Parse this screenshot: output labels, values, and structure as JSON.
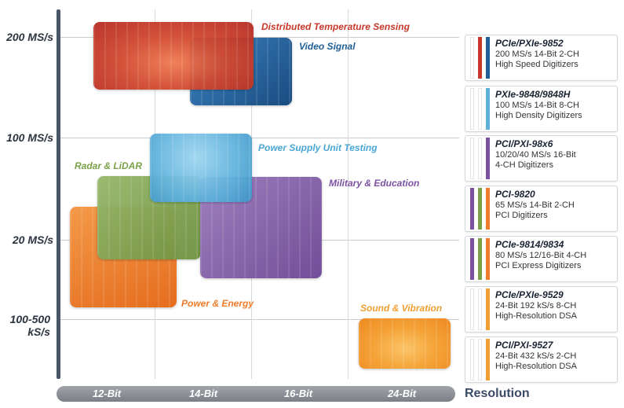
{
  "y_axis": {
    "labels": [
      "200 MS/s",
      "100 MS/s",
      "20 MS/s",
      "100-500 kS/s"
    ]
  },
  "x_axis": {
    "labels": [
      "12-Bit",
      "14-Bit",
      "16-Bit",
      "24-Bit"
    ],
    "title": "Resolution"
  },
  "applications": [
    {
      "label": "Distributed Temperature Sensing",
      "color": "#c8382a"
    },
    {
      "label": "Video Signal",
      "color": "#1f5e96"
    },
    {
      "label": "Power Supply Unit Testing",
      "color": "#5fb0d9"
    },
    {
      "label": "Radar & LiDAR",
      "color": "#7aa148"
    },
    {
      "label": "Military & Education",
      "color": "#7c52a0"
    },
    {
      "label": "Power & Energy",
      "color": "#ee7c2a"
    },
    {
      "label": "Sound & Vibration",
      "color": "#f0a032"
    }
  ],
  "products": [
    {
      "model": "PCIe/PXIe-9852",
      "line1": "200 MS/s 14-Bit  2-CH",
      "line2": "High Speed Digitizers",
      "strips": [
        "",
        "#c8382a",
        "#1f5e96"
      ]
    },
    {
      "model": "PXIe-9848/9848H",
      "line1": "100 MS/s 14-Bit  8-CH",
      "line2": "High Density Digitizers",
      "strips": [
        "",
        "",
        "#5fb0d9"
      ]
    },
    {
      "model": "PCI/PXI-98x6",
      "line1": "10/20/40 MS/s 16-Bit",
      "line2": "4-CH Digitizers",
      "strips": [
        "",
        "",
        "#7c52a0"
      ]
    },
    {
      "model": "PCI-9820",
      "line1": "65 MS/s 14-Bit  2-CH",
      "line2": "PCI Digitizers",
      "strips": [
        "#7c52a0",
        "#7aa148",
        "#ee7c2a"
      ]
    },
    {
      "model": "PCIe-9814/9834",
      "line1": "80 MS/s 12/16-Bit  4-CH",
      "line2": "PCI Express Digitizers",
      "strips": [
        "#7c52a0",
        "#7aa148",
        "#ee7c2a"
      ]
    },
    {
      "model": "PCIe/PXIe-9529",
      "line1": "24-Bit 192 kS/s 8-CH",
      "line2": "High-Resolution DSA",
      "strips": [
        "",
        "",
        "#f0a032"
      ]
    },
    {
      "model": "PCI/PXI-9527",
      "line1": "24-Bit 432 kS/s 2-CH",
      "line2": "High-Resolution DSA",
      "strips": [
        "",
        "",
        "#f0a032"
      ]
    }
  ]
}
